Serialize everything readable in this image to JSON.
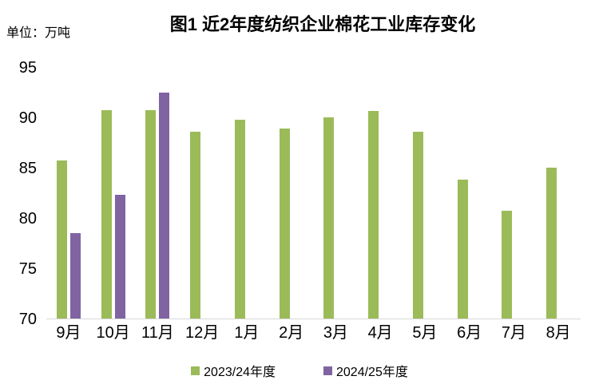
{
  "chart_data": {
    "type": "bar",
    "title": "图1 近2年度纺织企业棉花工业库存变化",
    "unit_label": "单位：万吨",
    "categories": [
      "9月",
      "10月",
      "11月",
      "12月",
      "1月",
      "2月",
      "3月",
      "4月",
      "5月",
      "6月",
      "7月",
      "8月"
    ],
    "series": [
      {
        "name": "2023/24年度",
        "color": "#9BBB59",
        "values": [
          85.7,
          90.7,
          90.7,
          88.6,
          89.8,
          88.9,
          90.0,
          90.6,
          88.6,
          83.8,
          80.7,
          85.0
        ]
      },
      {
        "name": "2024/25年度",
        "color": "#8064A2",
        "values": [
          78.5,
          82.3,
          92.5,
          null,
          null,
          null,
          null,
          null,
          null,
          null,
          null,
          null
        ]
      }
    ],
    "ylim": [
      70,
      95
    ],
    "yticks": [
      70,
      75,
      80,
      85,
      90,
      95
    ],
    "grid": false,
    "legend_position": "bottom",
    "colors": {
      "axis_line": "#D9D9D9",
      "text": "#000000",
      "background": "#FFFFFF"
    }
  }
}
